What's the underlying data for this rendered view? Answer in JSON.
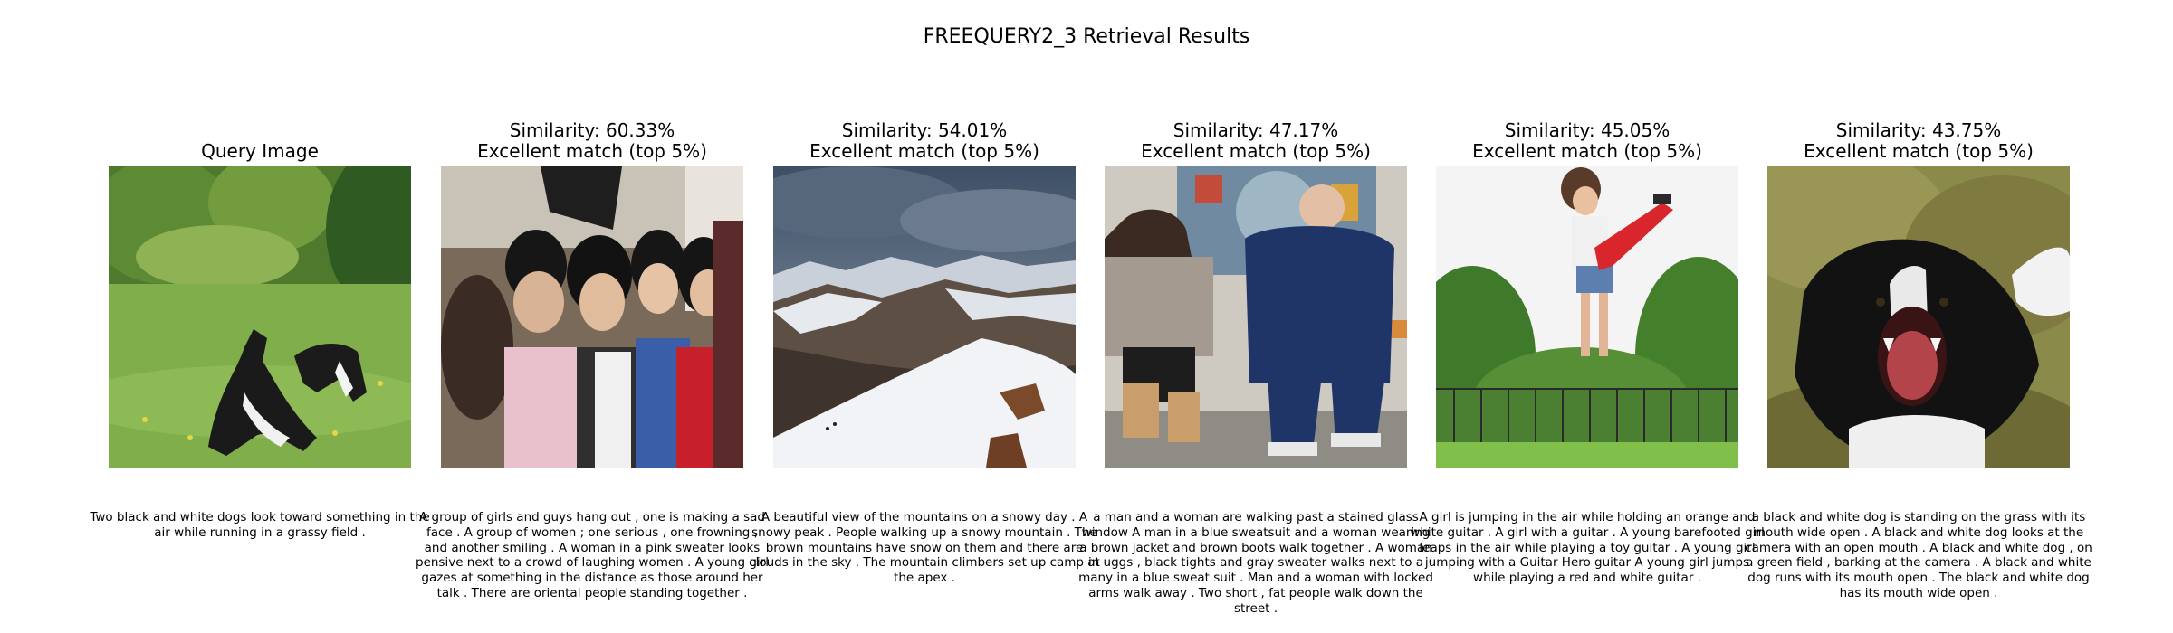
{
  "title": "FREEQUERY2_3 Retrieval Results",
  "panels": [
    {
      "title_lines": [
        "Query Image"
      ],
      "image": "two-dogs-grass",
      "caption": "Two black and white dogs look toward something in the air while running in a grassy field ."
    },
    {
      "title_lines": [
        "Similarity: 60.33%",
        "Excellent match (top 5%)"
      ],
      "image": "group-of-girls",
      "caption": "A group of girls and guys hang out , one is making a sad face . A group of women ; one serious , one frowning , and another smiling . A woman in a pink sweater looks pensive next to a crowd of laughing women . A young girl gazes at something in the distance as those around her talk . There are oriental people standing together ."
    },
    {
      "title_lines": [
        "Similarity: 54.01%",
        "Excellent match (top 5%)"
      ],
      "image": "snowy-mountains",
      "caption": "A beautiful view of the mountains on a snowy day . A snowy peak . People walking up a snowy mountain . The brown mountains have snow on them and there are clouds in the sky . The mountain climbers set up camp at the apex ."
    },
    {
      "title_lines": [
        "Similarity: 47.17%",
        "Excellent match (top 5%)"
      ],
      "image": "man-woman-walking",
      "caption": "a man and a woman are walking past a stained glass window A man in a blue sweatsuit and a woman wearing a brown jacket and brown boots walk together . A woman in uggs , black tights and gray sweater walks next to a many in a blue sweat suit . Man and a woman with locked arms walk away . Two short , fat people walk down the street ."
    },
    {
      "title_lines": [
        "Similarity: 45.05%",
        "Excellent match (top 5%)"
      ],
      "image": "girl-jumping-guitar",
      "caption": "A girl is jumping in the air while holding an orange and white guitar . A girl with a guitar . A young barefooted girl leaps in the air while playing a toy guitar . A young girl jumping with a Guitar Hero guitar A young girl jumps while playing a red and white guitar ."
    },
    {
      "title_lines": [
        "Similarity: 43.75%",
        "Excellent match (top 5%)"
      ],
      "image": "dog-open-mouth",
      "caption": "a black and white dog is standing on the grass with its mouth wide open . A black and white dog looks at the camera with an open mouth . A black and white dog , on a green field , barking at the camera . A black and white dog runs with its mouth open . The black and white dog has its mouth wide open ."
    }
  ]
}
